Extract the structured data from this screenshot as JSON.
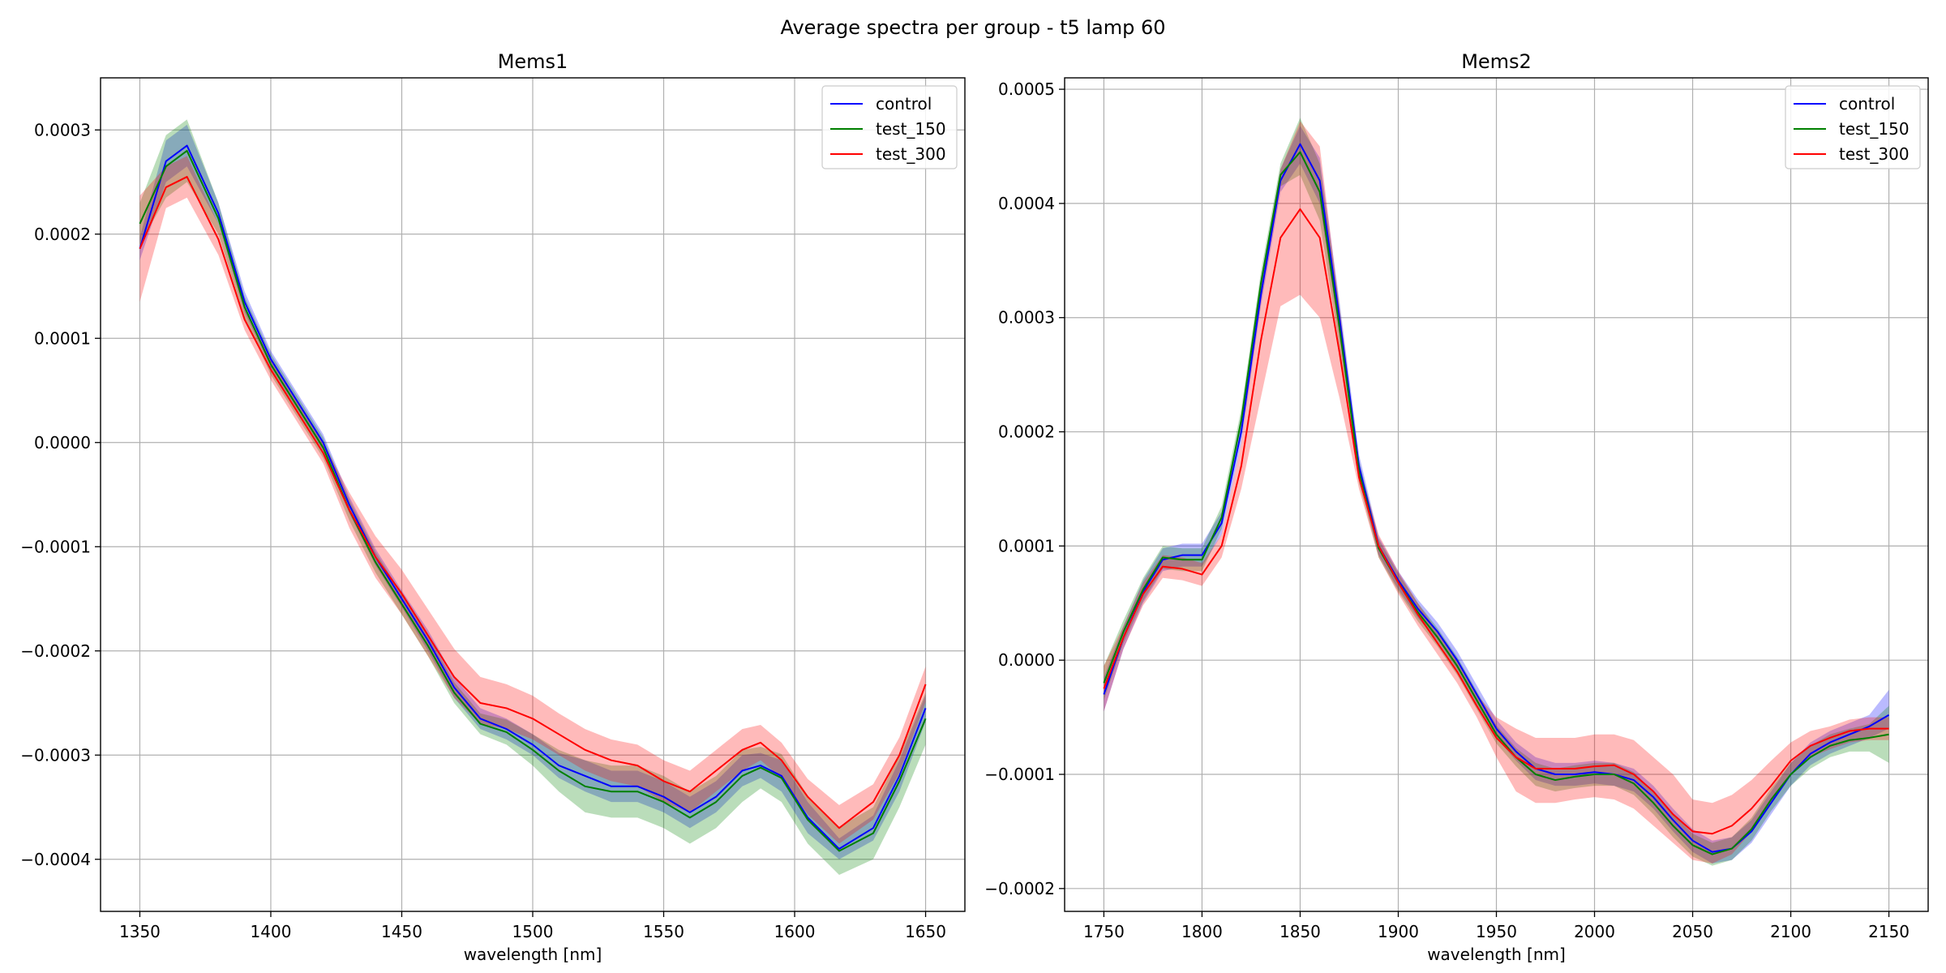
{
  "figure": {
    "suptitle": "Average spectra per group - t5 lamp 60"
  },
  "chart_data": [
    {
      "type": "line",
      "title": "Mems1",
      "xlabel": "wavelength [nm]",
      "ylabel": "",
      "xlim": [
        1335,
        1665
      ],
      "ylim": [
        -0.00045,
        0.00035
      ],
      "xticks": [
        1350,
        1400,
        1450,
        1500,
        1550,
        1600,
        1650
      ],
      "xtick_labels": [
        "1350",
        "1400",
        "1450",
        "1500",
        "1550",
        "1600",
        "1650"
      ],
      "yticks": [
        -0.0004,
        -0.0003,
        -0.0002,
        -0.0001,
        0,
        0.0001,
        0.0002,
        0.0003
      ],
      "ytick_labels": [
        "−0.0004",
        "−0.0003",
        "−0.0002",
        "−0.0001",
        "0.0000",
        "0.0001",
        "0.0002",
        "0.0003"
      ],
      "grid": true,
      "legend_position": "top-right",
      "x": [
        1350,
        1360,
        1368,
        1380,
        1390,
        1400,
        1410,
        1420,
        1430,
        1440,
        1450,
        1460,
        1470,
        1480,
        1490,
        1500,
        1510,
        1520,
        1530,
        1540,
        1550,
        1560,
        1570,
        1580,
        1587,
        1595,
        1605,
        1617,
        1630,
        1640,
        1650
      ],
      "series": [
        {
          "name": "control",
          "color": "#0000ff",
          "values": [
            0.000186,
            0.00027,
            0.000285,
            0.00022,
            0.000135,
            8e-05,
            4e-05,
            0.0,
            -6e-05,
            -0.00011,
            -0.00015,
            -0.00019,
            -0.000235,
            -0.000265,
            -0.000275,
            -0.00029,
            -0.00031,
            -0.00032,
            -0.00033,
            -0.00033,
            -0.00034,
            -0.000355,
            -0.00034,
            -0.000315,
            -0.00031,
            -0.00032,
            -0.00036,
            -0.00039,
            -0.00037,
            -0.00032,
            -0.000255
          ],
          "lower": [
            0.000175,
            0.00025,
            0.000265,
            0.00021,
            0.000125,
            7.2e-05,
            3.2e-05,
            -8e-06,
            -6.8e-05,
            -0.000118,
            -0.000158,
            -0.0002,
            -0.000245,
            -0.000275,
            -0.000285,
            -0.0003,
            -0.000322,
            -0.000335,
            -0.000345,
            -0.000345,
            -0.000355,
            -0.00037,
            -0.000355,
            -0.00033,
            -0.000322,
            -0.000335,
            -0.000375,
            -0.0004,
            -0.000382,
            -0.000335,
            -0.000268
          ],
          "upper": [
            0.000197,
            0.00029,
            0.000305,
            0.00023,
            0.000145,
            8.8e-05,
            4.8e-05,
            8e-06,
            -5.2e-05,
            -0.000102,
            -0.000142,
            -0.00018,
            -0.000225,
            -0.000255,
            -0.000265,
            -0.00028,
            -0.000298,
            -0.000305,
            -0.000315,
            -0.000315,
            -0.000325,
            -0.00034,
            -0.000325,
            -0.0003,
            -0.000298,
            -0.000305,
            -0.000345,
            -0.00038,
            -0.000358,
            -0.000305,
            -0.000242
          ]
        },
        {
          "name": "test_150",
          "color": "#008000",
          "values": [
            0.00021,
            0.000265,
            0.00028,
            0.000215,
            0.00013,
            7.5e-05,
            3.5e-05,
            -5e-06,
            -6.5e-05,
            -0.000115,
            -0.000155,
            -0.000195,
            -0.00024,
            -0.00027,
            -0.000278,
            -0.000295,
            -0.000315,
            -0.00033,
            -0.000335,
            -0.000335,
            -0.000345,
            -0.00036,
            -0.000345,
            -0.00032,
            -0.000312,
            -0.000322,
            -0.000362,
            -0.000392,
            -0.000375,
            -0.000325,
            -0.000265
          ],
          "lower": [
            0.00019,
            0.000235,
            0.00025,
            0.0002,
            0.00012,
            6.5e-05,
            2.5e-05,
            -1.5e-05,
            -7.5e-05,
            -0.000125,
            -0.000165,
            -0.000205,
            -0.00025,
            -0.00028,
            -0.00029,
            -0.00031,
            -0.000335,
            -0.000355,
            -0.00036,
            -0.00036,
            -0.00037,
            -0.000385,
            -0.00037,
            -0.000345,
            -0.000332,
            -0.000345,
            -0.000385,
            -0.000415,
            -0.0004,
            -0.00035,
            -0.00029
          ],
          "upper": [
            0.00023,
            0.000295,
            0.00031,
            0.00023,
            0.00014,
            8.5e-05,
            4.5e-05,
            5e-06,
            -5.5e-05,
            -0.000105,
            -0.000145,
            -0.000185,
            -0.00023,
            -0.00026,
            -0.000266,
            -0.00028,
            -0.000295,
            -0.000305,
            -0.00031,
            -0.00031,
            -0.00032,
            -0.000335,
            -0.00032,
            -0.000295,
            -0.000292,
            -0.000299,
            -0.000339,
            -0.000369,
            -0.00035,
            -0.0003,
            -0.00024
          ]
        },
        {
          "name": "test_300",
          "color": "#ff0000",
          "values": [
            0.000186,
            0.000245,
            0.000255,
            0.000195,
            0.000118,
            7e-05,
            3e-05,
            -1e-05,
            -6.5e-05,
            -0.00011,
            -0.000145,
            -0.000185,
            -0.000225,
            -0.00025,
            -0.000255,
            -0.000265,
            -0.00028,
            -0.000295,
            -0.000305,
            -0.00031,
            -0.000325,
            -0.000335,
            -0.000315,
            -0.000295,
            -0.000288,
            -0.000305,
            -0.00034,
            -0.00037,
            -0.000345,
            -0.0003,
            -0.000232
          ],
          "lower": [
            0.000135,
            0.000225,
            0.000235,
            0.00018,
            0.000108,
            6e-05,
            2e-05,
            -2e-05,
            -8.2e-05,
            -0.00013,
            -0.000165,
            -0.000205,
            -0.000245,
            -0.00027,
            -0.000275,
            -0.000285,
            -0.0003,
            -0.000315,
            -0.000325,
            -0.00033,
            -0.000345,
            -0.000355,
            -0.000335,
            -0.000315,
            -0.000305,
            -0.000322,
            -0.000357,
            -0.000385,
            -0.000362,
            -0.000317,
            -0.000249
          ],
          "upper": [
            0.000237,
            0.000265,
            0.000275,
            0.00021,
            0.000128,
            8e-05,
            4e-05,
            0.0,
            -4.8e-05,
            -9e-05,
            -0.000122,
            -0.00016,
            -0.000198,
            -0.000225,
            -0.000232,
            -0.000243,
            -0.00026,
            -0.000275,
            -0.000285,
            -0.00029,
            -0.000305,
            -0.000315,
            -0.000295,
            -0.000275,
            -0.000271,
            -0.000288,
            -0.000323,
            -0.000348,
            -0.000328,
            -0.000283,
            -0.000215
          ]
        }
      ]
    },
    {
      "type": "line",
      "title": "Mems2",
      "xlabel": "wavelength [nm]",
      "ylabel": "",
      "xlim": [
        1730,
        2170
      ],
      "ylim": [
        -0.00022,
        0.00051
      ],
      "xticks": [
        1750,
        1800,
        1850,
        1900,
        1950,
        2000,
        2050,
        2100,
        2150
      ],
      "xtick_labels": [
        "1750",
        "1800",
        "1850",
        "1900",
        "1950",
        "2000",
        "2050",
        "2100",
        "2150"
      ],
      "yticks": [
        -0.0002,
        -0.0001,
        0,
        0.0001,
        0.0002,
        0.0003,
        0.0004,
        0.0005
      ],
      "ytick_labels": [
        "−0.0002",
        "−0.0001",
        "0.0000",
        "0.0001",
        "0.0002",
        "0.0003",
        "0.0004",
        "0.0005"
      ],
      "grid": true,
      "legend_position": "top-right",
      "x": [
        1750,
        1760,
        1770,
        1780,
        1790,
        1800,
        1810,
        1820,
        1830,
        1840,
        1850,
        1860,
        1870,
        1880,
        1890,
        1900,
        1910,
        1920,
        1930,
        1940,
        1950,
        1960,
        1970,
        1980,
        1990,
        2000,
        2010,
        2020,
        2030,
        2040,
        2050,
        2060,
        2070,
        2080,
        2090,
        2100,
        2110,
        2120,
        2130,
        2140,
        2150
      ],
      "series": [
        {
          "name": "control",
          "color": "#0000ff",
          "values": [
            -3e-05,
            2e-05,
            6e-05,
            8.8e-05,
            9.2e-05,
            9.2e-05,
            0.00012,
            0.0002,
            0.00032,
            0.00042,
            0.000452,
            0.00042,
            0.0003,
            0.00017,
            0.0001,
            7e-05,
            4.5e-05,
            2.5e-05,
            0.0,
            -3e-05,
            -6e-05,
            -8e-05,
            -9.5e-05,
            -0.0001,
            -0.0001,
            -9.8e-05,
            -0.0001,
            -0.000105,
            -0.00012,
            -0.00014,
            -0.000158,
            -0.000168,
            -0.000165,
            -0.00015,
            -0.000125,
            -0.0001,
            -8.2e-05,
            -7.2e-05,
            -6.5e-05,
            -5.8e-05,
            -4.8e-05
          ],
          "lower": [
            -4.5e-05,
            1e-05,
            5e-05,
            7.8e-05,
            8.2e-05,
            8.2e-05,
            0.00011,
            0.00019,
            0.00031,
            0.00041,
            0.000435,
            0.0004,
            0.000285,
            0.00016,
            9.2e-05,
            6.2e-05,
            3.7e-05,
            1.7e-05,
            -8e-06,
            -3.8e-05,
            -6.8e-05,
            -8.8e-05,
            -0.000105,
            -0.00011,
            -0.00011,
            -0.000108,
            -0.00011,
            -0.000115,
            -0.00013,
            -0.00015,
            -0.000168,
            -0.000178,
            -0.000175,
            -0.00016,
            -0.000135,
            -0.00011,
            -9.2e-05,
            -8.2e-05,
            -7.5e-05,
            -6.8e-05,
            -6e-05
          ],
          "upper": [
            -1.5e-05,
            3e-05,
            7e-05,
            9.8e-05,
            0.000102,
            0.000102,
            0.00013,
            0.00021,
            0.00033,
            0.00043,
            0.000468,
            0.00044,
            0.000315,
            0.00018,
            0.000108,
            7.8e-05,
            5.3e-05,
            3.3e-05,
            8e-06,
            -2.2e-05,
            -5.2e-05,
            -7.2e-05,
            -8.5e-05,
            -9e-05,
            -9e-05,
            -8.8e-05,
            -9e-05,
            -9.5e-05,
            -0.00011,
            -0.00013,
            -0.000148,
            -0.000158,
            -0.000155,
            -0.00014,
            -0.000115,
            -9e-05,
            -7.2e-05,
            -6.2e-05,
            -5.5e-05,
            -4.8e-05,
            -2.6e-05
          ]
        },
        {
          "name": "test_150",
          "color": "#008000",
          "values": [
            -2e-05,
            2.5e-05,
            6.2e-05,
            9e-05,
            8.8e-05,
            8.8e-05,
            0.000125,
            0.00021,
            0.00033,
            0.000425,
            0.000445,
            0.00041,
            0.000292,
            0.000165,
            9.8e-05,
            6.8e-05,
            4.2e-05,
            2e-05,
            -5e-06,
            -3.5e-05,
            -6.5e-05,
            -8.5e-05,
            -0.0001,
            -0.000105,
            -0.000102,
            -0.0001,
            -0.0001,
            -0.000108,
            -0.000125,
            -0.000145,
            -0.000162,
            -0.00017,
            -0.000165,
            -0.000148,
            -0.000122,
            -0.0001,
            -8.5e-05,
            -7.5e-05,
            -7e-05,
            -6.8e-05,
            -6.5e-05
          ],
          "lower": [
            -3.5e-05,
            1.5e-05,
            5.2e-05,
            8e-05,
            7.8e-05,
            7.8e-05,
            0.000115,
            0.0002,
            0.00032,
            0.000415,
            0.000425,
            0.000385,
            0.000275,
            0.000155,
            9e-05,
            6e-05,
            3.4e-05,
            1.2e-05,
            -1.3e-05,
            -4.3e-05,
            -7.3e-05,
            -9.3e-05,
            -0.00011,
            -0.000115,
            -0.000112,
            -0.00011,
            -0.00011,
            -0.000118,
            -0.000135,
            -0.000155,
            -0.000172,
            -0.00018,
            -0.000175,
            -0.000158,
            -0.000132,
            -0.00011,
            -9.5e-05,
            -8.5e-05,
            -8e-05,
            -8e-05,
            -9e-05
          ],
          "upper": [
            -5e-06,
            3.5e-05,
            7.2e-05,
            0.0001,
            9.8e-05,
            9.8e-05,
            0.000135,
            0.00022,
            0.00034,
            0.000435,
            0.000475,
            0.000435,
            0.000309,
            0.000175,
            0.000106,
            7.6e-05,
            5e-05,
            2.8e-05,
            3e-06,
            -2.7e-05,
            -5.7e-05,
            -7.7e-05,
            -9e-05,
            -9.5e-05,
            -9.2e-05,
            -9e-05,
            -9e-05,
            -9.8e-05,
            -0.000115,
            -0.000135,
            -0.000152,
            -0.00016,
            -0.000155,
            -0.000138,
            -0.000112,
            -9e-05,
            -7.5e-05,
            -6.5e-05,
            -6e-05,
            -5.6e-05,
            -4e-05
          ]
        },
        {
          "name": "test_300",
          "color": "#ff0000",
          "values": [
            -2.5e-05,
            2e-05,
            5.8e-05,
            8.2e-05,
            8e-05,
            7.5e-05,
            0.0001,
            0.00017,
            0.00028,
            0.00037,
            0.000395,
            0.00037,
            0.00027,
            0.00016,
            0.0001,
            6.8e-05,
            4e-05,
            1.5e-05,
            -1e-05,
            -4e-05,
            -6.8e-05,
            -8.5e-05,
            -9.5e-05,
            -9.5e-05,
            -9.5e-05,
            -9.3e-05,
            -9.2e-05,
            -0.0001,
            -0.000115,
            -0.000135,
            -0.00015,
            -0.000152,
            -0.000145,
            -0.00013,
            -0.00011,
            -8.8e-05,
            -7.5e-05,
            -6.8e-05,
            -6.2e-05,
            -6e-05,
            -6e-05
          ],
          "lower": [
            -4.5e-05,
            1e-05,
            4.8e-05,
            7.2e-05,
            7e-05,
            6.5e-05,
            9e-05,
            0.00015,
            0.00023,
            0.00031,
            0.00032,
            0.0003,
            0.00023,
            0.00015,
            9e-05,
            5.8e-05,
            3e-05,
            5e-06,
            -2e-05,
            -5e-05,
            -8.5e-05,
            -0.000115,
            -0.000125,
            -0.000125,
            -0.000122,
            -0.00012,
            -0.000122,
            -0.00013,
            -0.000145,
            -0.00016,
            -0.000175,
            -0.000178,
            -0.00017,
            -0.00015,
            -0.000125,
            -9.8e-05,
            -8.5e-05,
            -7.8e-05,
            -7.2e-05,
            -7e-05,
            -7e-05
          ],
          "upper": [
            -5e-06,
            3e-05,
            6.8e-05,
            9.2e-05,
            9e-05,
            8.5e-05,
            0.00011,
            0.00019,
            0.00033,
            0.00043,
            0.000472,
            0.00045,
            0.00031,
            0.00017,
            0.00011,
            7.8e-05,
            5e-05,
            2.5e-05,
            0.0,
            -3e-05,
            -5e-05,
            -6e-05,
            -6.8e-05,
            -6.8e-05,
            -6.8e-05,
            -6.5e-05,
            -6.5e-05,
            -7e-05,
            -8.5e-05,
            -0.0001,
            -0.000122,
            -0.000125,
            -0.000118,
            -0.000105,
            -8.8e-05,
            -7.2e-05,
            -6.2e-05,
            -5.8e-05,
            -5.2e-05,
            -5e-05,
            -5e-05
          ]
        }
      ]
    }
  ]
}
